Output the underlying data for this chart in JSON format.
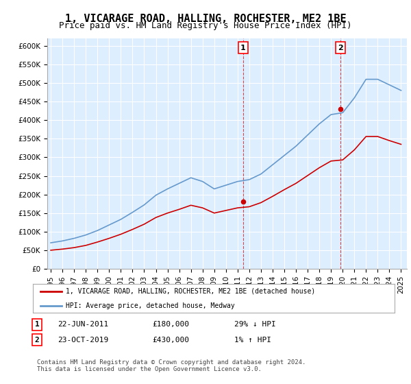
{
  "title": "1, VICARAGE ROAD, HALLING, ROCHESTER, ME2 1BE",
  "subtitle": "Price paid vs. HM Land Registry's House Price Index (HPI)",
  "ylabel": "",
  "xlabel": "",
  "ylim": [
    0,
    620000
  ],
  "yticks": [
    0,
    50000,
    100000,
    150000,
    200000,
    250000,
    300000,
    350000,
    400000,
    450000,
    500000,
    550000,
    600000
  ],
  "xlim_start": 1995.0,
  "xlim_end": 2025.5,
  "background_color": "#ffffff",
  "plot_bg_color": "#ddeeff",
  "grid_color": "#ffffff",
  "sale1_date": 2011.47,
  "sale1_price": 180000,
  "sale1_label": "1",
  "sale2_date": 2019.8,
  "sale2_price": 430000,
  "sale2_label": "2",
  "legend_entry1": "1, VICARAGE ROAD, HALLING, ROCHESTER, ME2 1BE (detached house)",
  "legend_entry2": "HPI: Average price, detached house, Medway",
  "table_row1": [
    "1",
    "22-JUN-2011",
    "£180,000",
    "29% ↓ HPI"
  ],
  "table_row2": [
    "2",
    "23-OCT-2019",
    "£430,000",
    "1% ↑ HPI"
  ],
  "footer": "Contains HM Land Registry data © Crown copyright and database right 2024.\nThis data is licensed under the Open Government Licence v3.0.",
  "hpi_color": "#6699cc",
  "property_color": "#cc0000",
  "title_fontsize": 11,
  "subtitle_fontsize": 9,
  "tick_fontsize": 7.5,
  "hpi_years": [
    1995,
    1996,
    1997,
    1998,
    1999,
    2000,
    2001,
    2002,
    2003,
    2004,
    2005,
    2006,
    2007,
    2008,
    2009,
    2010,
    2011,
    2012,
    2013,
    2014,
    2015,
    2016,
    2017,
    2018,
    2019,
    2020,
    2021,
    2022,
    2023,
    2024,
    2025
  ],
  "hpi_values": [
    70000,
    75000,
    82000,
    91000,
    103000,
    118000,
    133000,
    152000,
    172000,
    198000,
    215000,
    230000,
    245000,
    235000,
    215000,
    225000,
    235000,
    240000,
    255000,
    280000,
    305000,
    330000,
    360000,
    390000,
    415000,
    420000,
    460000,
    510000,
    510000,
    495000,
    480000
  ],
  "prop_years": [
    1995,
    1996,
    1997,
    1998,
    1999,
    2000,
    2001,
    2002,
    2003,
    2004,
    2005,
    2006,
    2007,
    2008,
    2009,
    2010,
    2011,
    2012,
    2013,
    2014,
    2015,
    2016,
    2017,
    2018,
    2019,
    2020,
    2021,
    2022,
    2023,
    2024,
    2025
  ],
  "prop_values": [
    50000,
    53000,
    57000,
    63000,
    72000,
    82000,
    93000,
    106000,
    120000,
    138000,
    150000,
    160000,
    171000,
    164000,
    150000,
    157000,
    164000,
    167000,
    178000,
    195000,
    213000,
    230000,
    251000,
    272000,
    290000,
    293000,
    320000,
    356000,
    356000,
    345000,
    335000
  ]
}
